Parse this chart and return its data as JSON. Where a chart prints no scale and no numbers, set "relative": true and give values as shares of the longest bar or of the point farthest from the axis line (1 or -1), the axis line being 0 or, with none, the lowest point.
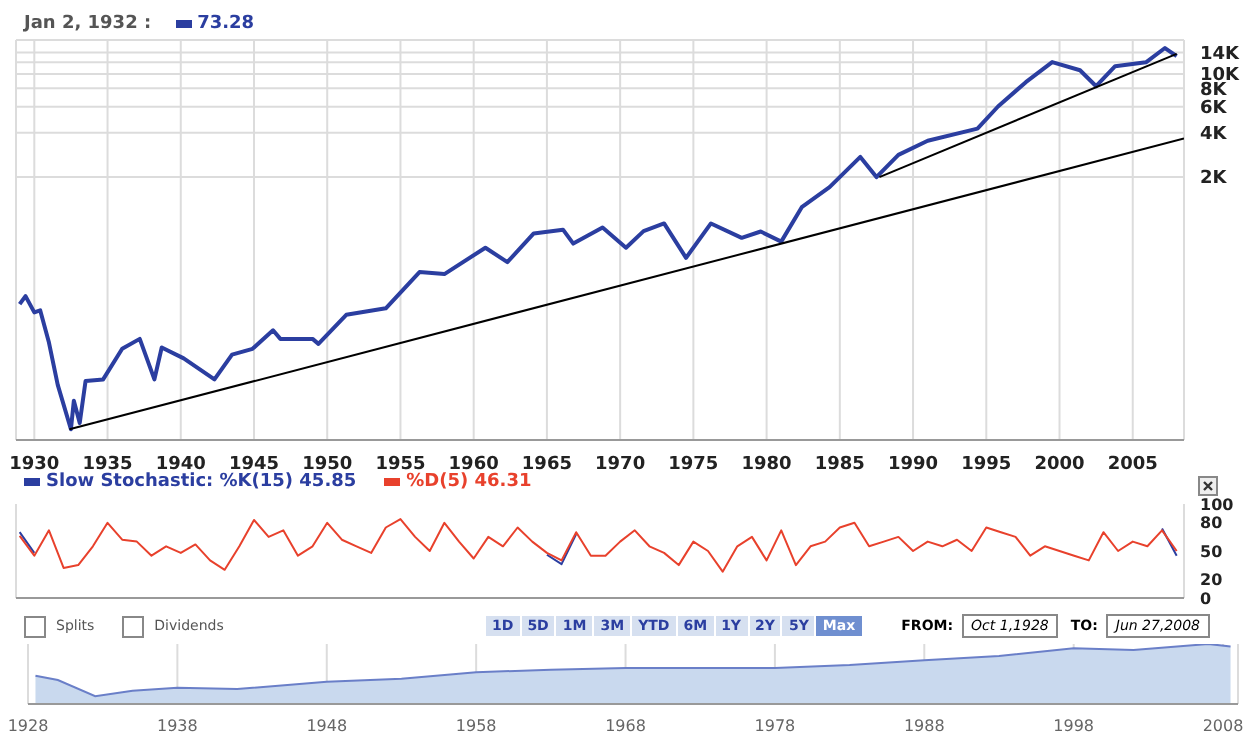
{
  "chart_data": [
    {
      "type": "line",
      "title": "Jan 2, 1932 :",
      "annotations": [
        "73.28"
      ],
      "log": "y",
      "grid": true,
      "marker": "none",
      "line_style": "solid",
      "xlim": [
        1928.75,
        2008.5
      ],
      "xticks": [
        1930,
        1935,
        1940,
        1945,
        1950,
        1955,
        1960,
        1965,
        1970,
        1975,
        1980,
        1985,
        1990,
        1995,
        2000,
        2005
      ],
      "ylim": [
        33,
        17000
      ],
      "yticks": [
        {
          "value": 2000,
          "label": "2K"
        },
        {
          "value": 4000,
          "label": "4K"
        },
        {
          "value": 6000,
          "label": "6K"
        },
        {
          "value": 8000,
          "label": "8K"
        },
        {
          "value": 10000,
          "label": "10K"
        },
        {
          "value": 12000,
          "label": null
        },
        {
          "value": 14000,
          "label": "14K"
        }
      ],
      "series": [
        {
          "color": "#2b3ea0",
          "x": [
            1929.0,
            1929.4,
            1930.0,
            1930.4,
            1931.0,
            1931.6,
            1932.5,
            1932.7,
            1933.1,
            1933.5,
            1934.7,
            1936.0,
            1937.2,
            1938.2,
            1938.7,
            1940.2,
            1942.3,
            1943.5,
            1944.9,
            1946.3,
            1946.8,
            1949.0,
            1949.4,
            1951.3,
            1954.0,
            1956.3,
            1958.0,
            1960.8,
            1962.3,
            1964.1,
            1966.1,
            1966.8,
            1968.8,
            1970.4,
            1971.6,
            1973.0,
            1974.5,
            1976.2,
            1978.3,
            1979.6,
            1981.0,
            1982.4,
            1984.3,
            1986.4,
            1987.5,
            1989.0,
            1991.0,
            1994.4,
            1995.8,
            1997.7,
            1999.5,
            2001.4,
            2002.5,
            2003.8,
            2005.9,
            2007.2,
            2008.0
          ],
          "values": [
            275,
            312,
            242,
            250,
            151,
            78,
            39,
            61,
            43,
            83,
            85,
            137,
            160,
            85,
            140,
            118,
            85,
            125,
            137,
            183,
            160,
            160,
            148,
            233,
            258,
            454,
            440,
            664,
            530,
            830,
            880,
            708,
            910,
            664,
            860,
            970,
            567,
            970,
            775,
            855,
            730,
            1250,
            1710,
            2740,
            2000,
            2830,
            3530,
            4260,
            6020,
            8800,
            12040,
            10600,
            8260,
            11300,
            12000,
            15000,
            13200
          ]
        },
        {
          "type": "line",
          "color": "#000000",
          "x": [
            1932.4,
            2008.5
          ],
          "values": [
            39,
            3650
          ]
        },
        {
          "type": "line",
          "color": "#000000",
          "x": [
            1987.7,
            2008.0
          ],
          "values": [
            2000,
            13700
          ]
        }
      ]
    },
    {
      "type": "line",
      "legend": "top left",
      "grid": "x",
      "tick_labels": "y",
      "marker": "none",
      "line_style": "solid",
      "xlim": [
        1928.75,
        2008.5
      ],
      "xticks": [
        1930,
        1935,
        1940,
        1945,
        1950,
        1955,
        1960,
        1965,
        1970,
        1975,
        1980,
        1985,
        1990,
        1995,
        2000,
        2005
      ],
      "ylim": [
        0,
        100
      ],
      "yticks": [
        0,
        20,
        50,
        80,
        100
      ],
      "x": [
        1929,
        1930,
        1931,
        1932,
        1933,
        1934,
        1935,
        1936,
        1937,
        1938,
        1939,
        1940,
        1941,
        1942,
        1943,
        1944,
        1945,
        1946,
        1947,
        1948,
        1949,
        1950,
        1951,
        1952,
        1953,
        1954,
        1955,
        1956,
        1957,
        1958,
        1959,
        1960,
        1961,
        1962,
        1963,
        1964,
        1965,
        1966,
        1967,
        1968,
        1969,
        1970,
        1971,
        1972,
        1973,
        1974,
        1975,
        1976,
        1977,
        1978,
        1979,
        1980,
        1981,
        1982,
        1983,
        1984,
        1985,
        1986,
        1987,
        1988,
        1989,
        1990,
        1991,
        1992,
        1993,
        1994,
        1995,
        1996,
        1997,
        1998,
        1999,
        2000,
        2001,
        2002,
        2003,
        2004,
        2005,
        2006,
        2007,
        2008
      ],
      "series": [
        {
          "name": "Slow Stochastic: %K(15) 45.85",
          "color": "#2b3ea0",
          "values": [
            70,
            48,
            null,
            null,
            null,
            null,
            null,
            null,
            null,
            null,
            null,
            null,
            null,
            null,
            null,
            null,
            null,
            null,
            null,
            null,
            null,
            null,
            null,
            null,
            null,
            null,
            null,
            null,
            null,
            null,
            null,
            null,
            null,
            null,
            null,
            null,
            46,
            36,
            68,
            null,
            null,
            null,
            null,
            null,
            null,
            null,
            null,
            null,
            null,
            null,
            null,
            null,
            null,
            null,
            null,
            null,
            null,
            null,
            null,
            null,
            null,
            null,
            null,
            null,
            null,
            null,
            null,
            null,
            null,
            null,
            null,
            null,
            null,
            null,
            null,
            null,
            null,
            null,
            74,
            45
          ]
        },
        {
          "name": "%D(5) 46.31",
          "color": "#e8412c",
          "values": [
            66,
            45,
            72,
            32,
            35,
            55,
            80,
            62,
            60,
            45,
            55,
            48,
            57,
            40,
            30,
            55,
            83,
            65,
            72,
            45,
            55,
            80,
            62,
            55,
            48,
            75,
            84,
            65,
            50,
            80,
            60,
            42,
            65,
            55,
            75,
            60,
            48,
            40,
            70,
            45,
            45,
            60,
            72,
            55,
            48,
            35,
            60,
            50,
            28,
            55,
            65,
            40,
            72,
            35,
            55,
            60,
            75,
            80,
            55,
            60,
            65,
            50,
            60,
            55,
            62,
            50,
            75,
            70,
            65,
            45,
            55,
            50,
            45,
            40,
            70,
            50,
            60,
            55,
            72,
            50
          ]
        }
      ]
    },
    {
      "type": "area",
      "relative": true,
      "grid": "x",
      "marker": "none",
      "xlim": [
        1928,
        2009
      ],
      "xticks": [
        1928,
        1938,
        1948,
        1958,
        1968,
        1978,
        1988,
        1998,
        2008
      ],
      "x": [
        1928.5,
        1930,
        1932.5,
        1935,
        1938,
        1942,
        1948,
        1953,
        1958,
        1963,
        1968,
        1973,
        1978,
        1983,
        1988,
        1993,
        1998,
        2002,
        2007,
        2008.5
      ],
      "series": [
        {
          "color": "#6a7fc8",
          "values": [
            0.47,
            0.4,
            0.13,
            0.22,
            0.27,
            0.25,
            0.37,
            0.42,
            0.53,
            0.57,
            0.6,
            0.6,
            0.6,
            0.65,
            0.73,
            0.8,
            0.93,
            0.9,
            1,
            0.96
          ]
        }
      ],
      "annotations": [
        "Splits",
        "Dividends",
        "1D",
        "5D",
        "1M",
        "3M",
        "YTD",
        "6M",
        "1Y",
        "2Y",
        "5Y",
        "Max",
        "FROM:",
        "Oct 1,1928",
        "TO:",
        "Jun 27,2008"
      ]
    }
  ]
}
